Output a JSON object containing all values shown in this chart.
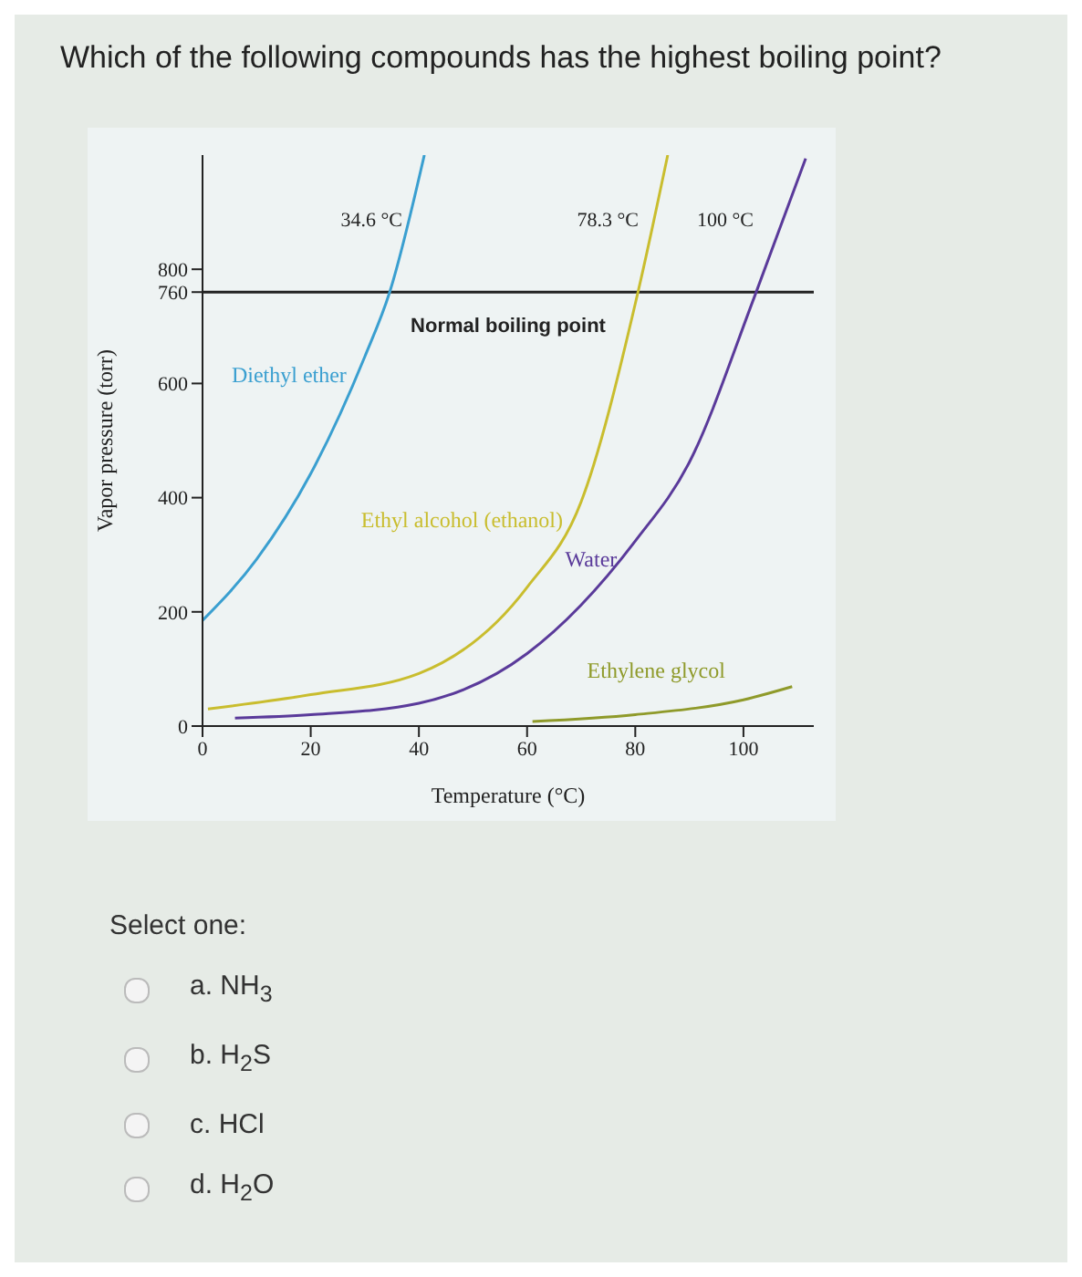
{
  "chart_data": {
    "type": "line",
    "title": "Which of the following compounds has the highest boiling point?",
    "xlabel": "Temperature (°C)",
    "ylabel": "Vapor pressure (torr)",
    "xlim": [
      0,
      113
    ],
    "xticks": [
      0,
      20,
      40,
      60,
      80,
      100
    ],
    "ylim": [
      0,
      1000
    ],
    "yticks": [
      0,
      200,
      400,
      600,
      760,
      800
    ],
    "marker": "none",
    "line_style": "solid",
    "series": [
      {
        "name": "Diethyl ether",
        "color": "#3a9fd0",
        "x": [
          0,
          10,
          20,
          30,
          34.6,
          41
        ],
        "values": [
          185,
          292,
          442,
          647,
          760,
          1000
        ]
      },
      {
        "name": "Ethyl alcohol (ethanol)",
        "color": "#c9bd2e",
        "x": [
          1,
          20,
          40,
          60,
          70,
          80.5,
          86
        ],
        "values": [
          30,
          55,
          92,
          243,
          393,
          760,
          1000
        ]
      },
      {
        "name": "Water",
        "color": "#5a3a9a",
        "x": [
          6,
          20,
          40,
          60,
          80,
          90,
          102,
          111.5
        ],
        "values": [
          14,
          20,
          40,
          127,
          324,
          462,
          751,
          994
        ]
      },
      {
        "name": "Ethylene glycol",
        "color": "#8f9a2a",
        "x": [
          61,
          80,
          100,
          109
        ],
        "values": [
          8,
          20,
          46,
          69
        ]
      }
    ],
    "ref_lines": [
      {
        "axis": "y",
        "value": 760,
        "label": "Normal boiling point",
        "color": "#222222"
      }
    ],
    "annotations": [
      {
        "text": "34.6 °C",
        "x": 34.6,
        "y": 760
      },
      {
        "text": "78.3 °C",
        "x": 78.3,
        "y": 760
      },
      {
        "text": "100 °C",
        "x": 100,
        "y": 760
      },
      "Select one:",
      "a. NH$_{3}$",
      "b. H$_{2}$S",
      "c. HCl",
      "d. H$_{2}$O"
    ]
  }
}
